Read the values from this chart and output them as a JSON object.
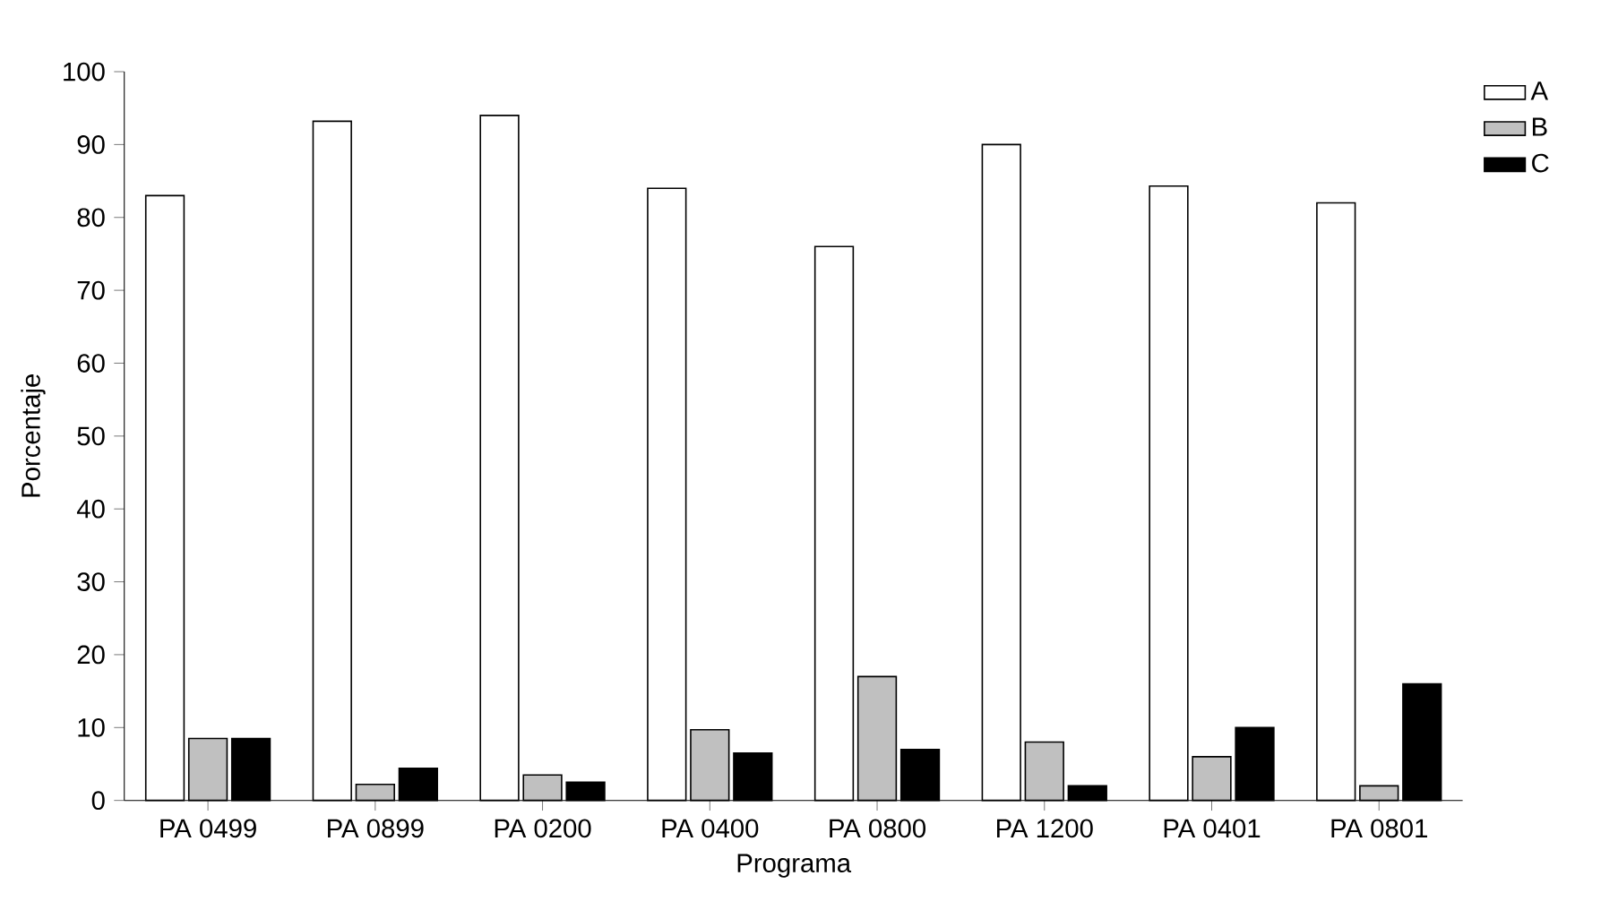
{
  "chart_data": {
    "type": "bar",
    "xlabel": "Programa",
    "ylabel": "Porcentaje",
    "categories": [
      "PA 0499",
      "PA 0899",
      "PA 0200",
      "PA 0400",
      "PA 0800",
      "PA 1200",
      "PA 0401",
      "PA 0801"
    ],
    "series": [
      {
        "name": "A",
        "color": "#ffffff",
        "values": [
          83,
          93.2,
          94,
          84,
          76,
          90,
          84.3,
          82
        ]
      },
      {
        "name": "B",
        "color": "#c0c0c0",
        "values": [
          8.5,
          2.2,
          3.5,
          9.7,
          17,
          8,
          6,
          2
        ]
      },
      {
        "name": "C",
        "color": "#000000",
        "values": [
          8.5,
          4.4,
          2.5,
          6.5,
          7,
          2,
          10,
          16
        ]
      }
    ],
    "ylim": [
      0,
      100
    ],
    "yticks": [
      0,
      10,
      20,
      30,
      40,
      50,
      60,
      70,
      80,
      90,
      100
    ],
    "grid": false,
    "legend": "top right"
  }
}
